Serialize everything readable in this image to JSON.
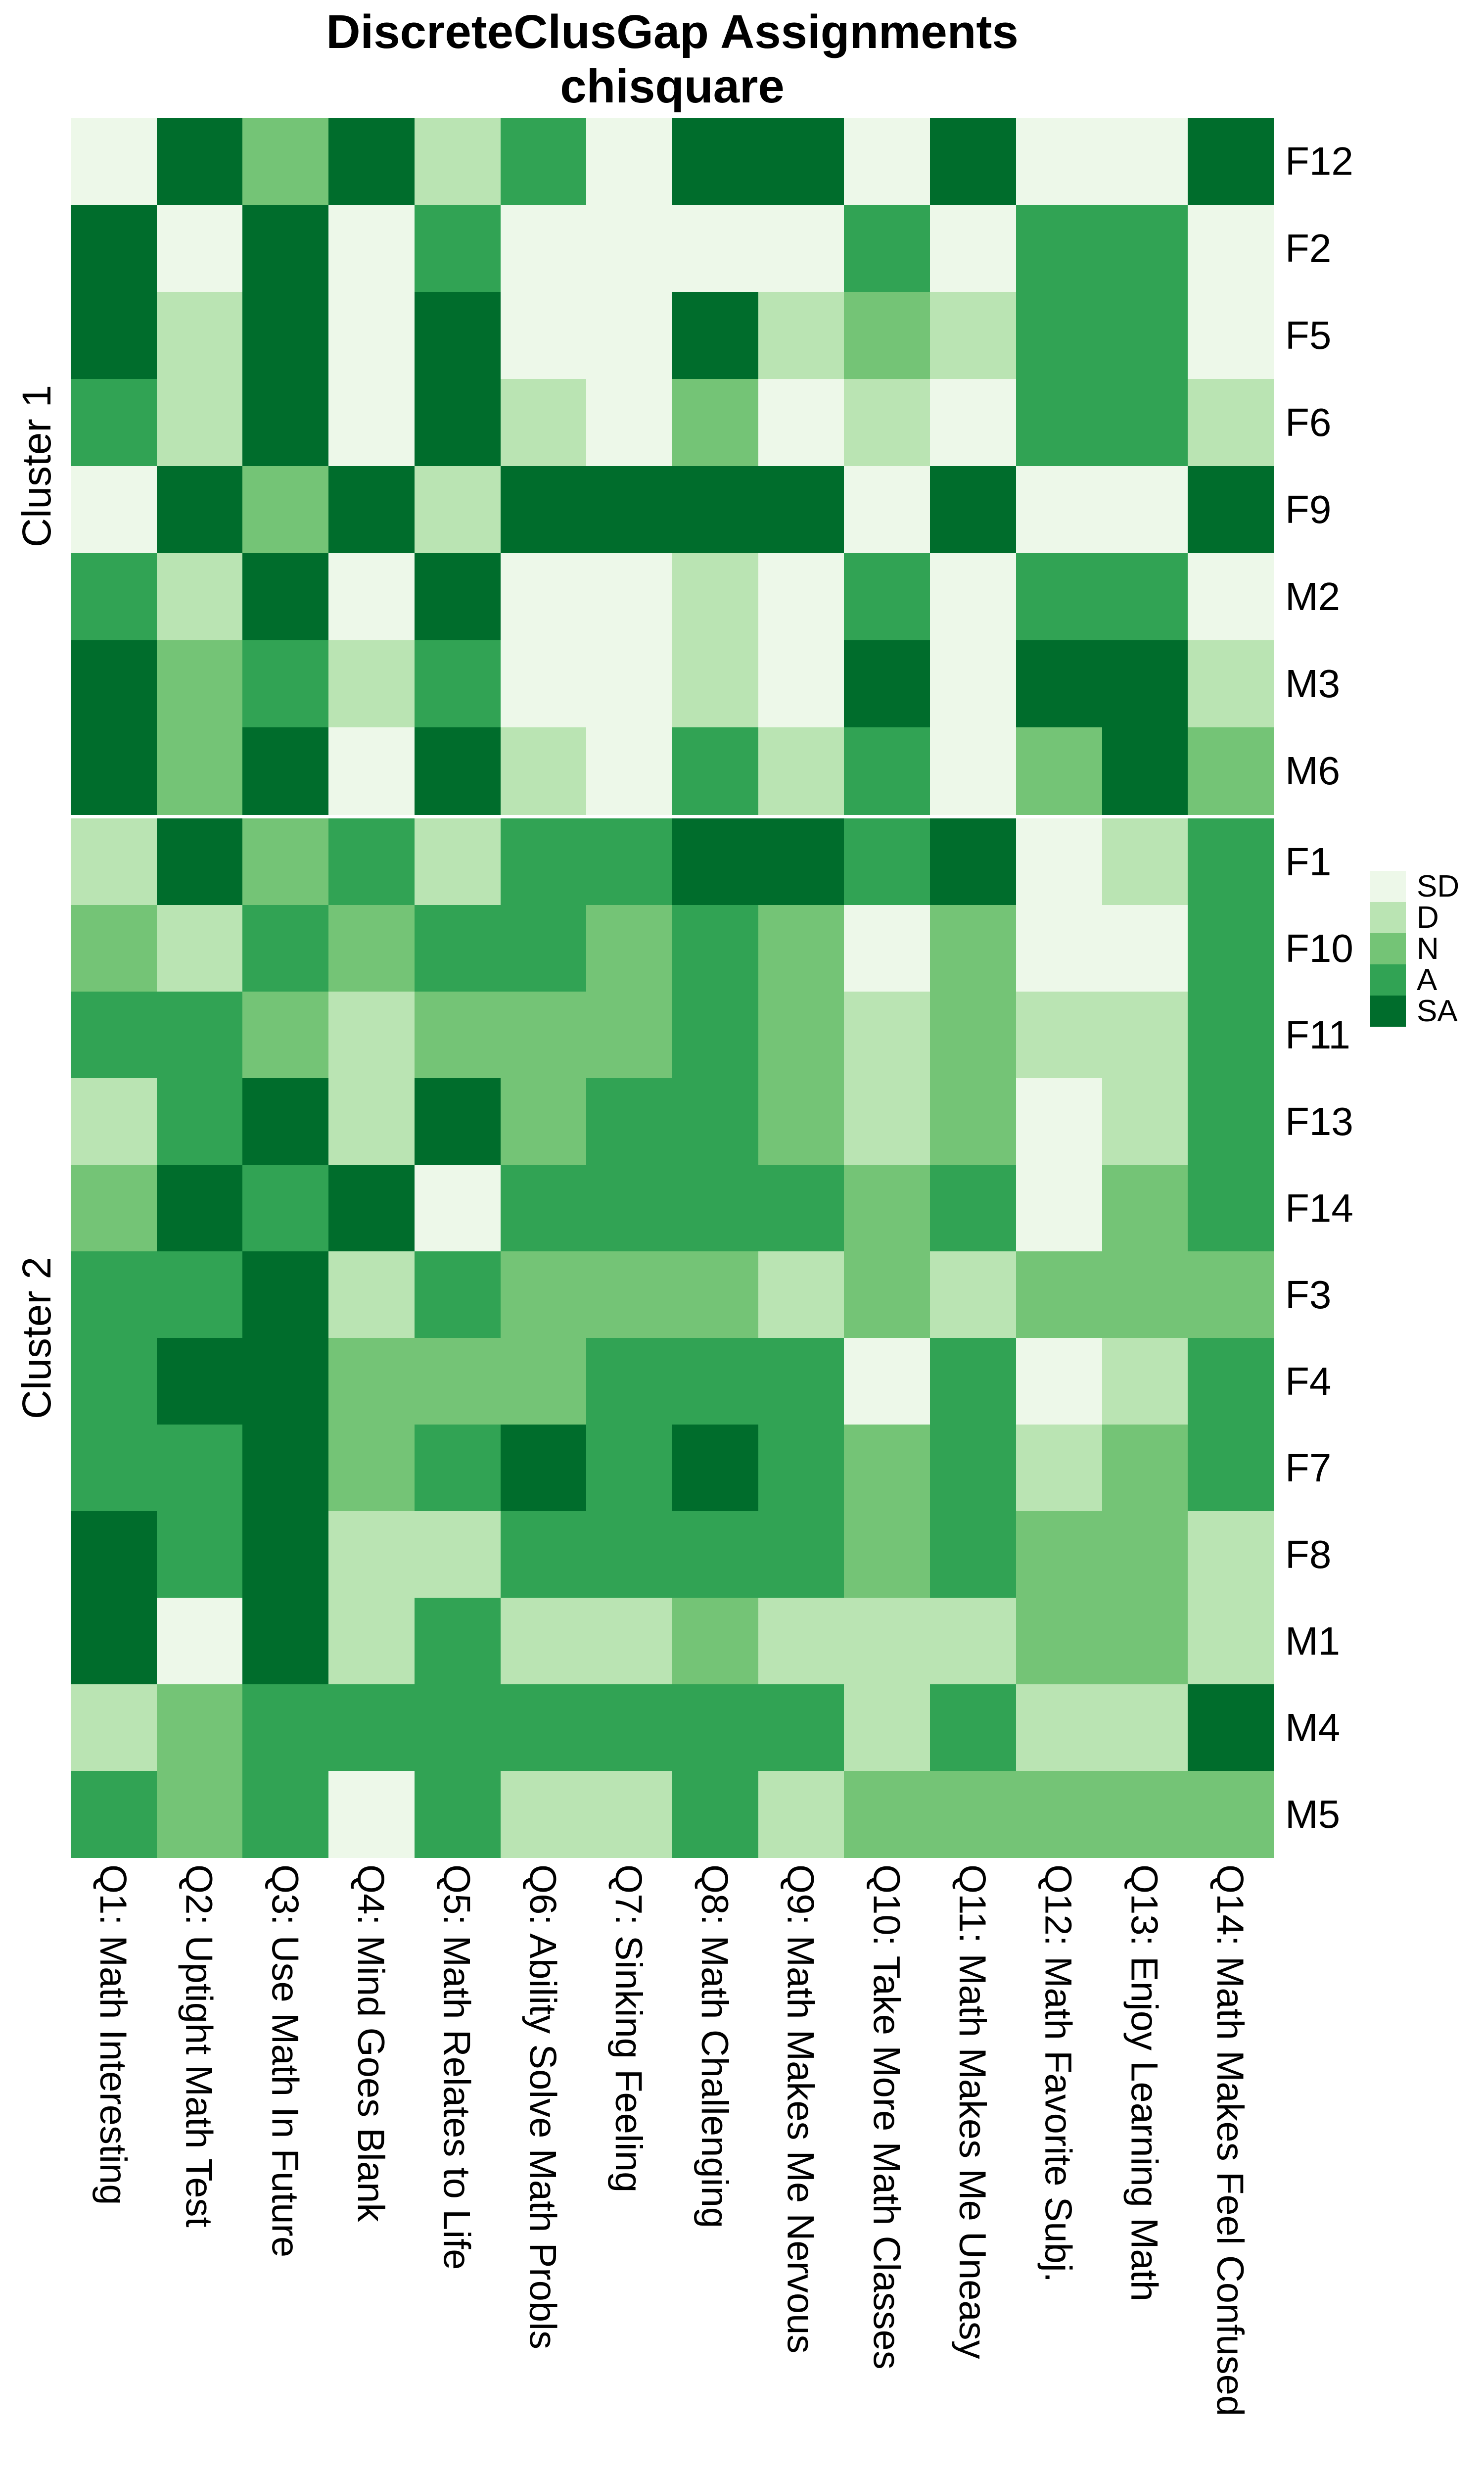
{
  "title": {
    "line1": "DiscreteClusGap Assignments",
    "line2": "chisquare"
  },
  "legend": {
    "labels": [
      "SD",
      "D",
      "N",
      "A",
      "SA"
    ]
  },
  "chart_data": {
    "type": "heatmap",
    "title": "DiscreteClusGap Assignments chisquare",
    "legend_position": "right",
    "scale": {
      "SD": "#edf8e9",
      "D": "#bae4b3",
      "N": "#74c476",
      "A": "#31a354",
      "SA": "#006d2c"
    },
    "scale_order": [
      "SD",
      "D",
      "N",
      "A",
      "SA"
    ],
    "x_categories": [
      "Q1: Math Interesting",
      "Q2: Uptight Math Test",
      "Q3: Use Math In Future",
      "Q4: Mind Goes Blank",
      "Q5: Math Relates to Life",
      "Q6: Ability Solve Math Probls",
      "Q7: Sinking Feeling",
      "Q8: Math Challenging",
      "Q9: Math Makes Me Nervous",
      "Q10: Take More Math Classes",
      "Q11: Math Makes Me Uneasy",
      "Q12: Math Favorite Subj.",
      "Q13: Enjoy Learning Math",
      "Q14: Math Makes Feel Confused"
    ],
    "row_groups": [
      {
        "group": "Cluster 1",
        "rows": [
          "F12",
          "F2",
          "F5",
          "F6",
          "F9",
          "M2",
          "M3",
          "M6"
        ],
        "values": [
          [
            "SD",
            "SA",
            "N",
            "SA",
            "D",
            "A",
            "SD",
            "SA",
            "SA",
            "SD",
            "SA",
            "SD",
            "SD",
            "SA"
          ],
          [
            "SA",
            "SD",
            "SA",
            "SD",
            "A",
            "SD",
            "SD",
            "SD",
            "SD",
            "A",
            "SD",
            "A",
            "A",
            "SD"
          ],
          [
            "SA",
            "D",
            "SA",
            "SD",
            "SA",
            "SD",
            "SD",
            "SA",
            "D",
            "N",
            "D",
            "A",
            "A",
            "SD"
          ],
          [
            "A",
            "D",
            "SA",
            "SD",
            "SA",
            "D",
            "SD",
            "N",
            "SD",
            "D",
            "SD",
            "A",
            "A",
            "D"
          ],
          [
            "SD",
            "SA",
            "N",
            "SA",
            "D",
            "SA",
            "SA",
            "SA",
            "SA",
            "SD",
            "SA",
            "SD",
            "SD",
            "SA"
          ],
          [
            "A",
            "D",
            "SA",
            "SD",
            "SA",
            "SD",
            "SD",
            "D",
            "SD",
            "A",
            "SD",
            "A",
            "A",
            "SD"
          ],
          [
            "SA",
            "N",
            "A",
            "D",
            "A",
            "SD",
            "SD",
            "D",
            "SD",
            "SA",
            "SD",
            "SA",
            "SA",
            "D"
          ],
          [
            "SA",
            "N",
            "SA",
            "SD",
            "SA",
            "D",
            "SD",
            "A",
            "D",
            "A",
            "SD",
            "N",
            "SA",
            "N"
          ]
        ]
      },
      {
        "group": "Cluster 2",
        "rows": [
          "F1",
          "F10",
          "F11",
          "F13",
          "F14",
          "F3",
          "F4",
          "F7",
          "F8",
          "M1",
          "M4",
          "M5"
        ],
        "values": [
          [
            "D",
            "SA",
            "N",
            "A",
            "D",
            "A",
            "A",
            "SA",
            "SA",
            "A",
            "SA",
            "SD",
            "D",
            "A"
          ],
          [
            "N",
            "D",
            "A",
            "N",
            "A",
            "A",
            "N",
            "A",
            "N",
            "SD",
            "N",
            "SD",
            "SD",
            "A"
          ],
          [
            "A",
            "A",
            "N",
            "D",
            "N",
            "N",
            "N",
            "A",
            "N",
            "D",
            "N",
            "D",
            "D",
            "A"
          ],
          [
            "D",
            "A",
            "SA",
            "D",
            "SA",
            "N",
            "A",
            "A",
            "N",
            "D",
            "N",
            "SD",
            "D",
            "A"
          ],
          [
            "N",
            "SA",
            "A",
            "SA",
            "SD",
            "A",
            "A",
            "A",
            "A",
            "N",
            "A",
            "SD",
            "N",
            "A"
          ],
          [
            "A",
            "A",
            "SA",
            "D",
            "A",
            "N",
            "N",
            "N",
            "D",
            "N",
            "D",
            "N",
            "N",
            "N"
          ],
          [
            "A",
            "SA",
            "SA",
            "N",
            "N",
            "N",
            "A",
            "A",
            "A",
            "SD",
            "A",
            "SD",
            "D",
            "A"
          ],
          [
            "A",
            "A",
            "SA",
            "N",
            "A",
            "SA",
            "A",
            "SA",
            "A",
            "N",
            "A",
            "D",
            "N",
            "A"
          ],
          [
            "SA",
            "A",
            "SA",
            "D",
            "D",
            "A",
            "A",
            "A",
            "A",
            "N",
            "A",
            "N",
            "N",
            "D"
          ],
          [
            "SA",
            "SD",
            "SA",
            "D",
            "A",
            "D",
            "D",
            "N",
            "D",
            "D",
            "D",
            "N",
            "N",
            "D"
          ],
          [
            "D",
            "N",
            "A",
            "A",
            "A",
            "A",
            "A",
            "A",
            "A",
            "D",
            "A",
            "D",
            "D",
            "SA"
          ],
          [
            "A",
            "N",
            "A",
            "SD",
            "A",
            "D",
            "D",
            "A",
            "D",
            "N",
            "N",
            "N",
            "N",
            "N"
          ]
        ]
      }
    ]
  }
}
